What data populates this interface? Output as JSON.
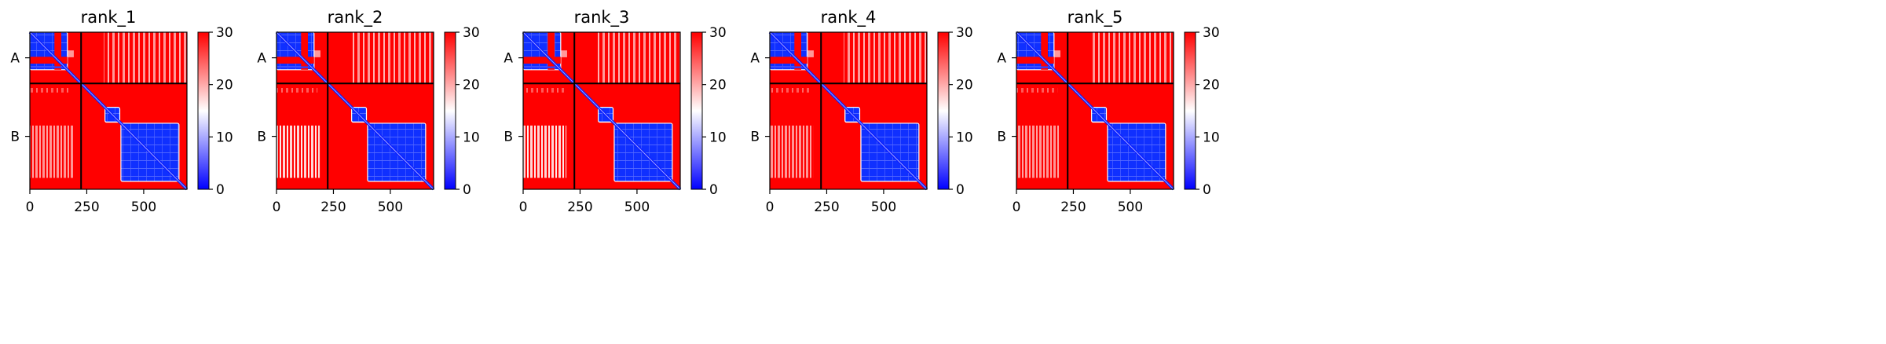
{
  "chart_data": [
    {
      "type": "heatmap",
      "title": "rank_1",
      "x_ticks": [
        0,
        250,
        500
      ],
      "xlim": [
        0,
        690
      ],
      "ylim": [
        690,
        0
      ],
      "chain_boundary": 225,
      "chain_labels": [
        "A",
        "B"
      ],
      "colorbar": {
        "min": 0,
        "max": 30,
        "ticks": [
          0,
          10,
          20,
          30
        ],
        "colors": [
          "#0000ff",
          "#ffffff",
          "#ff0000"
        ]
      },
      "low_error_blocks": [
        [
          0,
          0,
          165,
          165
        ],
        [
          330,
          330,
          395,
          395
        ],
        [
          400,
          400,
          655,
          655
        ]
      ],
      "inter_chain_light_band": {
        "x": [
          0,
          190
        ],
        "y": [
          410,
          640
        ],
        "level": "medium"
      }
    },
    {
      "type": "heatmap",
      "title": "rank_2",
      "x_ticks": [
        0,
        250,
        500
      ],
      "xlim": [
        0,
        690
      ],
      "ylim": [
        690,
        0
      ],
      "chain_boundary": 225,
      "chain_labels": [
        "A",
        "B"
      ],
      "colorbar": {
        "min": 0,
        "max": 30,
        "ticks": [
          0,
          10,
          20,
          30
        ],
        "colors": [
          "#0000ff",
          "#ffffff",
          "#ff0000"
        ]
      },
      "low_error_blocks": [
        [
          0,
          0,
          165,
          165
        ],
        [
          330,
          330,
          395,
          395
        ],
        [
          400,
          400,
          655,
          655
        ]
      ],
      "inter_chain_light_band": {
        "x": [
          0,
          190
        ],
        "y": [
          410,
          640
        ],
        "level": "strong"
      }
    },
    {
      "type": "heatmap",
      "title": "rank_3",
      "x_ticks": [
        0,
        250,
        500
      ],
      "xlim": [
        0,
        690
      ],
      "ylim": [
        690,
        0
      ],
      "chain_boundary": 225,
      "chain_labels": [
        "A",
        "B"
      ],
      "colorbar": {
        "min": 0,
        "max": 30,
        "ticks": [
          0,
          10,
          20,
          30
        ],
        "colors": [
          "#0000ff",
          "#ffffff",
          "#ff0000"
        ]
      },
      "low_error_blocks": [
        [
          0,
          0,
          165,
          165
        ],
        [
          330,
          330,
          395,
          395
        ],
        [
          400,
          400,
          655,
          655
        ]
      ],
      "inter_chain_light_band": {
        "x": [
          0,
          190
        ],
        "y": [
          410,
          640
        ],
        "level": "strong"
      }
    },
    {
      "type": "heatmap",
      "title": "rank_4",
      "x_ticks": [
        0,
        250,
        500
      ],
      "xlim": [
        0,
        690
      ],
      "ylim": [
        690,
        0
      ],
      "chain_boundary": 225,
      "chain_labels": [
        "A",
        "B"
      ],
      "colorbar": {
        "min": 0,
        "max": 30,
        "ticks": [
          0,
          10,
          20,
          30
        ],
        "colors": [
          "#0000ff",
          "#ffffff",
          "#ff0000"
        ]
      },
      "low_error_blocks": [
        [
          0,
          0,
          165,
          165
        ],
        [
          330,
          330,
          395,
          395
        ],
        [
          400,
          400,
          655,
          655
        ]
      ],
      "inter_chain_light_band": {
        "x": [
          0,
          190
        ],
        "y": [
          410,
          640
        ],
        "level": "medium"
      }
    },
    {
      "type": "heatmap",
      "title": "rank_5",
      "x_ticks": [
        0,
        250,
        500
      ],
      "xlim": [
        0,
        690
      ],
      "ylim": [
        690,
        0
      ],
      "chain_boundary": 225,
      "chain_labels": [
        "A",
        "B"
      ],
      "colorbar": {
        "min": 0,
        "max": 30,
        "ticks": [
          0,
          10,
          20,
          30
        ],
        "colors": [
          "#0000ff",
          "#ffffff",
          "#ff0000"
        ]
      },
      "low_error_blocks": [
        [
          0,
          0,
          165,
          165
        ],
        [
          330,
          330,
          395,
          395
        ],
        [
          400,
          400,
          655,
          655
        ]
      ],
      "inter_chain_light_band": {
        "x": [
          0,
          190
        ],
        "y": [
          410,
          640
        ],
        "level": "medium"
      }
    }
  ]
}
